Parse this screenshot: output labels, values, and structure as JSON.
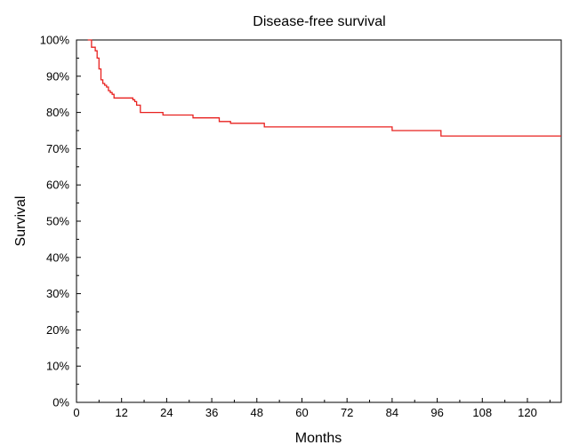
{
  "chart_data": {
    "type": "line",
    "step": true,
    "title": "Disease-free survival",
    "xlabel": "Months",
    "ylabel": "Survival",
    "xlim": [
      0,
      129
    ],
    "ylim": [
      0,
      100
    ],
    "x_ticks": [
      "0",
      "12",
      "24",
      "36",
      "48",
      "60",
      "72",
      "84",
      "96",
      "108",
      "120"
    ],
    "y_ticks": [
      "0%",
      "10%",
      "20%",
      "30%",
      "40%",
      "50%",
      "60%",
      "70%",
      "80%",
      "90%",
      "100%"
    ],
    "grid": false,
    "legend": "none",
    "series": [
      {
        "color": "#e8211f",
        "x": [
          3,
          4,
          5,
          5.5,
          6,
          6.5,
          7,
          7.5,
          8,
          8.5,
          9,
          9.5,
          10,
          15,
          15.5,
          16,
          17,
          23,
          31,
          38,
          41,
          50,
          84,
          97,
          129
        ],
        "y": [
          100,
          98,
          97,
          95,
          92,
          89,
          88,
          87.5,
          87,
          86,
          85.5,
          85,
          84,
          83.5,
          83,
          82,
          80,
          79.3,
          78.5,
          77.5,
          77,
          76,
          75,
          73.5,
          73.5
        ]
      }
    ]
  }
}
